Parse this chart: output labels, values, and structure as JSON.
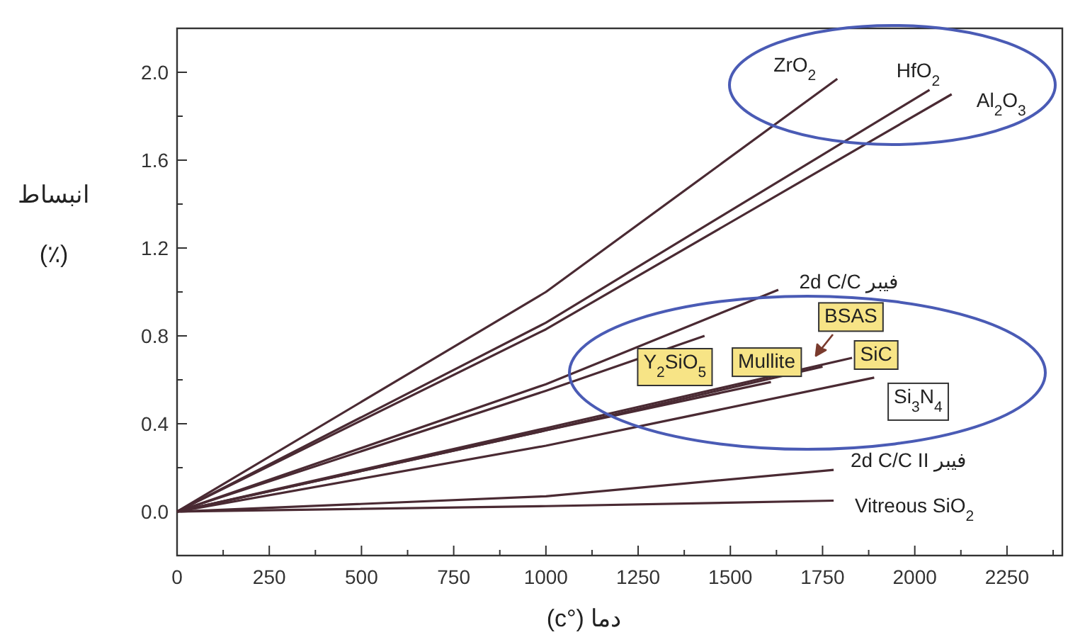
{
  "chart_data": {
    "type": "line",
    "xlabel": "دما (°c)",
    "ylabel": "انبساط\n(٪)",
    "xlim": [
      0,
      2400
    ],
    "ylim": [
      -0.2,
      2.2
    ],
    "xticks": [
      0,
      {
        "value": 125,
        "label": null
      },
      250,
      {
        "value": 375,
        "label": null
      },
      500,
      {
        "value": 625,
        "label": null
      },
      750,
      {
        "value": 875,
        "label": null
      },
      1000,
      {
        "value": 1125,
        "label": null
      },
      1250,
      {
        "value": 1375,
        "label": null
      },
      1500,
      {
        "value": 1625,
        "label": null
      },
      1750,
      {
        "value": 1875,
        "label": null
      },
      2000,
      {
        "value": 2125,
        "label": null
      },
      2250,
      {
        "value": 2375,
        "label": null
      }
    ],
    "yticks": [
      {
        "value": 0,
        "label": "0.0"
      },
      {
        "value": 0.2,
        "label": null
      },
      {
        "value": 0.4,
        "label": "0.4"
      },
      {
        "value": 0.6,
        "label": null
      },
      {
        "value": 0.8,
        "label": "0.8"
      },
      {
        "value": 1.0,
        "label": null
      },
      {
        "value": 1.2,
        "label": "1.2"
      },
      {
        "value": 1.4,
        "label": null
      },
      {
        "value": 1.6,
        "label": "1.6"
      },
      {
        "value": 1.8,
        "label": null
      },
      {
        "value": 2.0,
        "label": "2.0"
      }
    ],
    "grid": false,
    "marker": "none",
    "line_style": "solid",
    "series": [
      {
        "name": "ZrO$_{2}$",
        "color": "#4a2a33",
        "x": [
          0,
          1000,
          1790
        ],
        "values": [
          0,
          1.0,
          1.97
        ]
      },
      {
        "name": "HfO$_{2}$",
        "color": "#4a2a33",
        "x": [
          0,
          1000,
          2040
        ],
        "values": [
          0,
          0.86,
          1.92
        ]
      },
      {
        "name": "Al$_{2}$O$_{3}$",
        "color": "#4a2a33",
        "x": [
          0,
          1000,
          2100
        ],
        "values": [
          0,
          0.83,
          1.9
        ]
      },
      {
        "name": "فیبر 2d C/C",
        "color": "#4a2a33",
        "x": [
          0,
          1000,
          1630
        ],
        "values": [
          0,
          0.58,
          1.01
        ]
      },
      {
        "name": "Y$_{2}$SiO$_{5}$",
        "color": "#4a2a33",
        "x": [
          0,
          1000,
          1430
        ],
        "values": [
          0,
          0.55,
          0.8
        ]
      },
      {
        "name": "Mullite",
        "color": "#4a2a33",
        "x": [
          0,
          1000,
          1610
        ],
        "values": [
          0,
          0.37,
          0.59
        ]
      },
      {
        "name": "BSAS",
        "color": "#4a2a33",
        "x": [
          0,
          1000,
          1750
        ],
        "values": [
          0,
          0.37,
          0.66
        ]
      },
      {
        "name": "SiC",
        "color": "#4a2a33",
        "x": [
          0,
          1000,
          1830
        ],
        "values": [
          0,
          0.38,
          0.7
        ]
      },
      {
        "name": "Si$_{3}$N$_{4}$",
        "color": "#4a2a33",
        "x": [
          0,
          1000,
          1890
        ],
        "values": [
          0,
          0.3,
          0.61
        ]
      },
      {
        "name": "فیبر 2d C/C II",
        "color": "#4a2a33",
        "x": [
          0,
          1000,
          1780
        ],
        "values": [
          0,
          0.07,
          0.19
        ]
      },
      {
        "name": "Vitreous SiO$_{2}$",
        "color": "#4a2a33",
        "x": [
          0,
          1000,
          1780
        ],
        "values": [
          0,
          0.025,
          0.05
        ]
      }
    ]
  }
}
